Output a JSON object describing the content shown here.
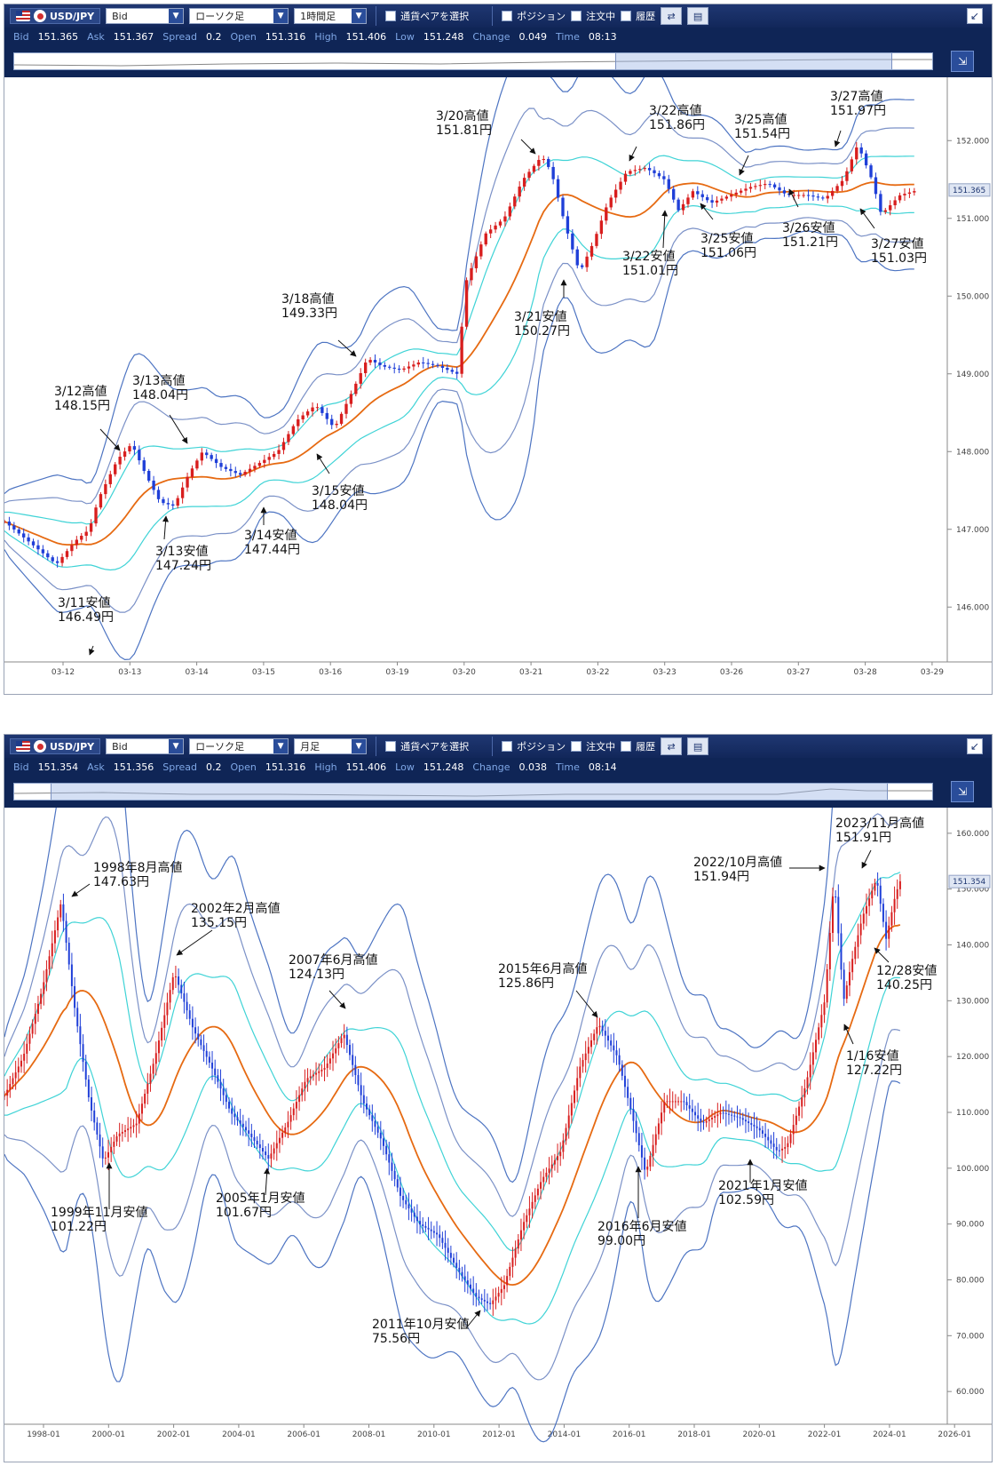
{
  "panels": [
    {
      "toolbar": {
        "pair": "USD/JPY",
        "price_type": "Bid",
        "chart_type": "ローソク足",
        "timeframe": "1時間足",
        "select_pair_label": "通貨ペアを選択",
        "position_label": "ポジション",
        "orders_label": "注文中",
        "history_label": "履歴"
      },
      "quote": {
        "bid_label": "Bid",
        "bid": "151.365",
        "ask_label": "Ask",
        "ask": "151.367",
        "spread_label": "Spread",
        "spread": "0.2",
        "open_label": "Open",
        "open": "151.316",
        "high_label": "High",
        "high": "151.406",
        "low_label": "Low",
        "low": "151.248",
        "change_label": "Change",
        "change": "0.049",
        "time_label": "Time",
        "time": "08:13"
      },
      "navigator": {
        "window_start": 0.655,
        "window_end": 0.955
      },
      "chart_data": {
        "type": "candlestick",
        "indicators": [
          "moving-average",
          "bollinger-bands"
        ],
        "colors": {
          "up": "#d81e1e",
          "down": "#1f3fd8",
          "ma": "#e66a12",
          "band1": "#3fd3d6",
          "band2": "#7b91c7",
          "band3": "#4d74c2"
        },
        "ylim": [
          145.5,
          152.7
        ],
        "y_ticks": [
          146.0,
          147.0,
          148.0,
          149.0,
          150.0,
          151.0,
          152.0
        ],
        "last_price": "151.365",
        "x_ticks": [
          "03-12",
          "03-13",
          "03-14",
          "03-15",
          "03-16",
          "03-19",
          "03-20",
          "03-21",
          "03-22",
          "03-23",
          "03-26",
          "03-27",
          "03-28",
          "03-29"
        ],
        "path_points": [
          [
            0,
            147.1
          ],
          [
            0.02,
            146.9
          ],
          [
            0.04,
            146.7
          ],
          [
            0.055,
            146.55
          ],
          [
            0.075,
            146.85
          ],
          [
            0.09,
            147.0
          ],
          [
            0.1,
            147.4
          ],
          [
            0.12,
            147.9
          ],
          [
            0.135,
            148.1
          ],
          [
            0.15,
            147.7
          ],
          [
            0.165,
            147.35
          ],
          [
            0.18,
            147.3
          ],
          [
            0.195,
            147.7
          ],
          [
            0.21,
            148.0
          ],
          [
            0.23,
            147.8
          ],
          [
            0.25,
            147.7
          ],
          [
            0.27,
            147.85
          ],
          [
            0.29,
            148.0
          ],
          [
            0.31,
            148.4
          ],
          [
            0.33,
            148.6
          ],
          [
            0.35,
            148.3
          ],
          [
            0.37,
            148.8
          ],
          [
            0.385,
            149.2
          ],
          [
            0.4,
            149.1
          ],
          [
            0.42,
            149.05
          ],
          [
            0.44,
            149.15
          ],
          [
            0.46,
            149.1
          ],
          [
            0.48,
            149.0
          ],
          [
            0.49,
            150.2
          ],
          [
            0.51,
            150.8
          ],
          [
            0.53,
            151.0
          ],
          [
            0.55,
            151.5
          ],
          [
            0.57,
            151.8
          ],
          [
            0.58,
            151.6
          ],
          [
            0.595,
            150.9
          ],
          [
            0.61,
            150.3
          ],
          [
            0.625,
            150.7
          ],
          [
            0.64,
            151.2
          ],
          [
            0.66,
            151.6
          ],
          [
            0.68,
            151.65
          ],
          [
            0.7,
            151.5
          ],
          [
            0.715,
            151.1
          ],
          [
            0.73,
            151.35
          ],
          [
            0.75,
            151.2
          ],
          [
            0.77,
            151.3
          ],
          [
            0.79,
            151.4
          ],
          [
            0.81,
            151.45
          ],
          [
            0.83,
            151.3
          ],
          [
            0.85,
            151.3
          ],
          [
            0.87,
            151.25
          ],
          [
            0.89,
            151.5
          ],
          [
            0.905,
            151.95
          ],
          [
            0.92,
            151.5
          ],
          [
            0.93,
            151.05
          ],
          [
            0.95,
            151.3
          ],
          [
            0.965,
            151.35
          ]
        ],
        "annotations": [
          {
            "label": "3/11安値",
            "value": "146.49円",
            "kind": "low"
          },
          {
            "label": "3/12高値",
            "value": "148.15円",
            "kind": "high"
          },
          {
            "label": "3/13高値",
            "value": "148.04円",
            "kind": "high"
          },
          {
            "label": "3/13安値",
            "value": "147.24円",
            "kind": "low"
          },
          {
            "label": "3/14安値",
            "value": "147.44円",
            "kind": "low"
          },
          {
            "label": "3/15安値",
            "value": "148.04円",
            "kind": "low"
          },
          {
            "label": "3/18高値",
            "value": "149.33円",
            "kind": "high"
          },
          {
            "label": "3/20高値",
            "value": "151.81円",
            "kind": "high"
          },
          {
            "label": "3/21安値",
            "value": "150.27円",
            "kind": "low"
          },
          {
            "label": "3/22高値",
            "value": "151.86円",
            "kind": "high"
          },
          {
            "label": "3/22安値",
            "value": "151.01円",
            "kind": "low"
          },
          {
            "label": "3/25高値",
            "value": "151.54円",
            "kind": "high"
          },
          {
            "label": "3/25安値",
            "value": "151.06円",
            "kind": "low"
          },
          {
            "label": "3/26安値",
            "value": "151.21円",
            "kind": "low"
          },
          {
            "label": "3/27高値",
            "value": "151.97円",
            "kind": "high"
          },
          {
            "label": "3/27安値",
            "value": "151.03円",
            "kind": "low"
          }
        ]
      }
    },
    {
      "toolbar": {
        "pair": "USD/JPY",
        "price_type": "Bid",
        "chart_type": "ローソク足",
        "timeframe": "月足",
        "select_pair_label": "通貨ペアを選択",
        "position_label": "ポジション",
        "orders_label": "注文中",
        "history_label": "履歴"
      },
      "quote": {
        "bid_label": "Bid",
        "bid": "151.354",
        "ask_label": "Ask",
        "ask": "151.356",
        "spread_label": "Spread",
        "spread": "0.2",
        "open_label": "Open",
        "open": "151.316",
        "high_label": "High",
        "high": "151.406",
        "low_label": "Low",
        "low": "151.248",
        "change_label": "Change",
        "change": "0.038",
        "time_label": "Time",
        "time": "08:14"
      },
      "navigator": {
        "window_start": 0.04,
        "window_end": 0.95
      },
      "chart_data": {
        "type": "candlestick",
        "indicators": [
          "moving-average",
          "bollinger-bands"
        ],
        "colors": {
          "up": "#d81e1e",
          "down": "#1f3fd8",
          "ma": "#e66a12",
          "band1": "#3fd3d6",
          "band2": "#7b91c7",
          "band3": "#4d74c2"
        },
        "ylim": [
          57,
          163
        ],
        "y_ticks": [
          60.0,
          70.0,
          80.0,
          90.0,
          100.0,
          110.0,
          120.0,
          130.0,
          140.0,
          150.0,
          160.0
        ],
        "last_price": "151.354",
        "x_ticks": [
          "1998-01",
          "2000-01",
          "2002-01",
          "2004-01",
          "2006-01",
          "2008-01",
          "2010-01",
          "2012-01",
          "2014-01",
          "2016-01",
          "2018-01",
          "2020-01",
          "2022-01",
          "2024-01",
          "2026-01"
        ],
        "path_points": [
          [
            0,
            113
          ],
          [
            0.02,
            120
          ],
          [
            0.04,
            132
          ],
          [
            0.06,
            147.6
          ],
          [
            0.075,
            128
          ],
          [
            0.09,
            112
          ],
          [
            0.105,
            101.2
          ],
          [
            0.12,
            106
          ],
          [
            0.14,
            108
          ],
          [
            0.16,
            120
          ],
          [
            0.18,
            135.2
          ],
          [
            0.2,
            125
          ],
          [
            0.22,
            118
          ],
          [
            0.24,
            110
          ],
          [
            0.26,
            106
          ],
          [
            0.28,
            101.7
          ],
          [
            0.3,
            108
          ],
          [
            0.32,
            116
          ],
          [
            0.34,
            118
          ],
          [
            0.36,
            124.1
          ],
          [
            0.38,
            112
          ],
          [
            0.4,
            105
          ],
          [
            0.42,
            95
          ],
          [
            0.44,
            90
          ],
          [
            0.46,
            88
          ],
          [
            0.48,
            82
          ],
          [
            0.5,
            77
          ],
          [
            0.515,
            75.6
          ],
          [
            0.53,
            79
          ],
          [
            0.55,
            90
          ],
          [
            0.57,
            98
          ],
          [
            0.59,
            103
          ],
          [
            0.61,
            118
          ],
          [
            0.63,
            125.9
          ],
          [
            0.65,
            120
          ],
          [
            0.665,
            110
          ],
          [
            0.68,
            99
          ],
          [
            0.7,
            112
          ],
          [
            0.72,
            112
          ],
          [
            0.74,
            108
          ],
          [
            0.76,
            110
          ],
          [
            0.78,
            109
          ],
          [
            0.8,
            107
          ],
          [
            0.82,
            103
          ],
          [
            0.83,
            104
          ],
          [
            0.85,
            115
          ],
          [
            0.87,
            130
          ],
          [
            0.88,
            151.9
          ],
          [
            0.89,
            130
          ],
          [
            0.9,
            138
          ],
          [
            0.91,
            145
          ],
          [
            0.925,
            151.9
          ],
          [
            0.935,
            141
          ],
          [
            0.945,
            149
          ],
          [
            0.95,
            151.4
          ]
        ],
        "annotations": [
          {
            "label": "1998年8月高値",
            "value": "147.63円",
            "kind": "high"
          },
          {
            "label": "1999年11月安値",
            "value": "101.22円",
            "kind": "low"
          },
          {
            "label": "2002年2月高値",
            "value": "135.15円",
            "kind": "high"
          },
          {
            "label": "2005年1月安値",
            "value": "101.67円",
            "kind": "low"
          },
          {
            "label": "2007年6月高値",
            "value": "124.13円",
            "kind": "high"
          },
          {
            "label": "2011年10月安値",
            "value": "75.56円",
            "kind": "low"
          },
          {
            "label": "2015年6月高値",
            "value": "125.86円",
            "kind": "high"
          },
          {
            "label": "2016年6月安値",
            "value": "99.00円",
            "kind": "low"
          },
          {
            "label": "2021年1月安値",
            "value": "102.59円",
            "kind": "low"
          },
          {
            "label": "2022/10月高値",
            "value": "151.94円",
            "kind": "high"
          },
          {
            "label": "2023/11月高値",
            "value": "151.91円",
            "kind": "high"
          },
          {
            "label": "12/28安値",
            "value": "140.25円",
            "kind": "low"
          },
          {
            "label": "1/16安値",
            "value": "127.22円",
            "kind": "low"
          }
        ]
      }
    }
  ]
}
